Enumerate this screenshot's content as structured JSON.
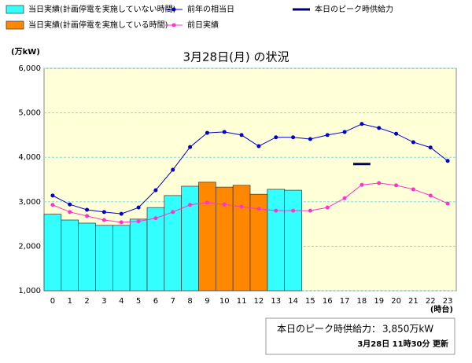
{
  "chart_data": {
    "type": "bar-line",
    "title": "3月28日(月) の状況",
    "y_label": "(万kW)",
    "x_label": "(時台)",
    "categories": [
      "0",
      "1",
      "2",
      "3",
      "4",
      "5",
      "6",
      "7",
      "8",
      "9",
      "10",
      "11",
      "12",
      "13",
      "14",
      "15",
      "16",
      "17",
      "18",
      "19",
      "20",
      "21",
      "22",
      "23"
    ],
    "ylim": [
      1000,
      6000
    ],
    "yticks": [
      {
        "value": 1000,
        "label": "1,000"
      },
      {
        "value": 2000,
        "label": "2,000"
      },
      {
        "value": 3000,
        "label": "3,000"
      },
      {
        "value": 4000,
        "label": "4,000"
      },
      {
        "value": 5000,
        "label": "5,000"
      },
      {
        "value": 6000,
        "label": "6,000"
      }
    ],
    "grid": true,
    "series": [
      {
        "name": "当日実績(計画停電を実施していない時間)",
        "kind": "bar",
        "color": "#33ffff",
        "values": [
          2720,
          2590,
          2520,
          2470,
          2470,
          2610,
          2870,
          3140,
          3350,
          null,
          null,
          null,
          null,
          3280,
          3260,
          null,
          null,
          null,
          null,
          null,
          null,
          null,
          null,
          null
        ]
      },
      {
        "name": "当日実績(計画停電を実施している時間)",
        "kind": "bar",
        "color": "#ff8800",
        "values": [
          null,
          null,
          null,
          null,
          null,
          null,
          null,
          null,
          null,
          3440,
          3330,
          3370,
          3170,
          null,
          null,
          null,
          null,
          null,
          null,
          null,
          null,
          null,
          null,
          null
        ]
      },
      {
        "name": "前年の相当日",
        "kind": "line",
        "color": "#0000cc",
        "values": [
          3140,
          2940,
          2820,
          2770,
          2730,
          2870,
          3260,
          3720,
          4230,
          4550,
          4570,
          4500,
          4250,
          4450,
          4450,
          4410,
          4500,
          4570,
          4750,
          4660,
          4530,
          4340,
          4220,
          3920
        ]
      },
      {
        "name": "前日実績",
        "kind": "line",
        "color": "#ff33cc",
        "values": [
          2930,
          2770,
          2680,
          2590,
          2540,
          2560,
          2630,
          2770,
          2930,
          2980,
          2940,
          2890,
          2840,
          2800,
          2800,
          2800,
          2870,
          3080,
          3380,
          3420,
          3370,
          3280,
          3140,
          2960
        ]
      }
    ],
    "peak": {
      "name": "本日のピーク時供給力",
      "color": "#000066",
      "category": "18",
      "value": 3850,
      "value_label": "3,850万kW"
    },
    "footer": {
      "label": "本日のピーク時供給力：",
      "updated": "3月28日 11時30分 更新"
    }
  }
}
